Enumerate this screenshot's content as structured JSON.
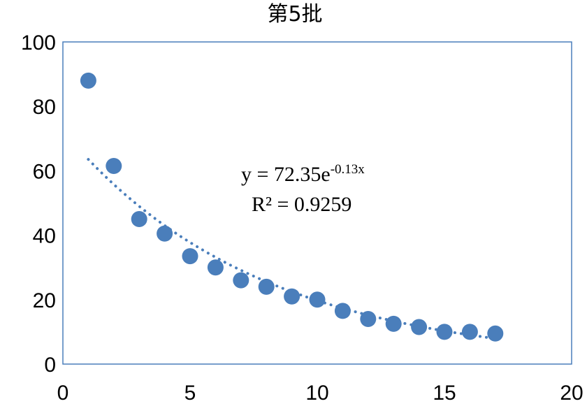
{
  "chart_data": {
    "type": "scatter",
    "title": "第5批",
    "xlabel": "",
    "ylabel": "",
    "xlim": [
      0,
      20
    ],
    "ylim": [
      0,
      100
    ],
    "x_ticks": [
      "0",
      "5",
      "10",
      "15",
      "20"
    ],
    "y_ticks": [
      "0",
      "20",
      "40",
      "60",
      "80",
      "100"
    ],
    "grid": false,
    "legend": "none",
    "series": [
      {
        "x": [
          1,
          2,
          3,
          4,
          5,
          6,
          7,
          8,
          9,
          10,
          11,
          12,
          13,
          14,
          15,
          16,
          17
        ],
        "y": [
          88,
          61.5,
          45,
          40.5,
          33.5,
          30,
          26,
          24,
          21,
          20,
          16.5,
          14,
          12.5,
          11.5,
          10,
          10,
          9.5
        ],
        "color": "#4a7ebb"
      }
    ],
    "trendline": {
      "type": "exponential",
      "a": 72.35,
      "b": -0.13,
      "x_range": [
        1,
        17
      ],
      "color": "#4a7ebb",
      "style": "dotted"
    },
    "annotations": {
      "equation_prefix": "y = 72.35e",
      "equation_exponent": "-0.13x",
      "r_squared": "R² = 0.9259"
    },
    "colors": {
      "marker": "#4a7ebb",
      "plot_border": "#4a7ebb"
    }
  }
}
